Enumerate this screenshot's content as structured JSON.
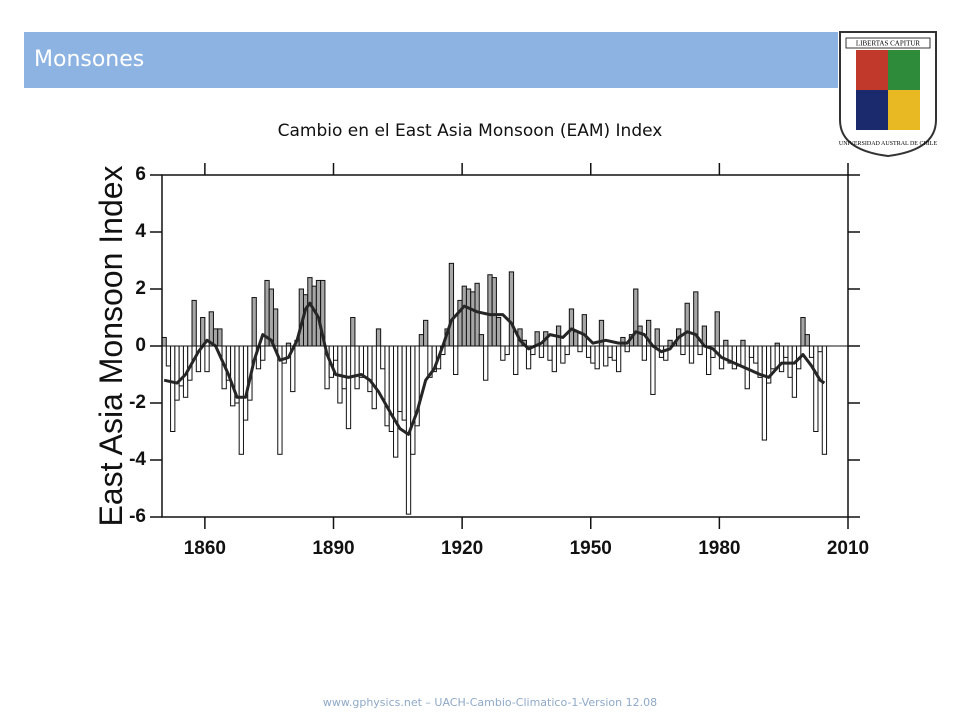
{
  "header": {
    "title": "Monsones"
  },
  "logo": {
    "motto": "LIBERTAS CAPITUR",
    "name": "UNIVERSIDAD AUSTRAL DE CHILE"
  },
  "footer": "www.gphysics.net – UACH-Cambio-Climatico-1-Version 12.08",
  "chart_data": {
    "type": "bar",
    "title": "Cambio en el East Asia Monsoon (EAM) Index",
    "ylabel": "East Asia Monsoon Index",
    "xlim": [
      1850,
      2010
    ],
    "xticks": [
      1860,
      1890,
      1920,
      1950,
      1980,
      2010
    ],
    "ylim": [
      -6,
      6
    ],
    "yticks": [
      -6,
      -4,
      -2,
      0,
      2,
      4,
      6
    ],
    "positive_color": "#a6a6a6",
    "negative_color": "#ffffff",
    "x": [
      1850,
      1851,
      1852,
      1853,
      1854,
      1855,
      1856,
      1857,
      1858,
      1859,
      1860,
      1861,
      1862,
      1863,
      1864,
      1865,
      1866,
      1867,
      1868,
      1869,
      1870,
      1871,
      1872,
      1873,
      1874,
      1875,
      1876,
      1877,
      1878,
      1879,
      1880,
      1881,
      1882,
      1883,
      1884,
      1885,
      1886,
      1887,
      1888,
      1889,
      1890,
      1891,
      1892,
      1893,
      1894,
      1895,
      1896,
      1897,
      1898,
      1899,
      1900,
      1901,
      1902,
      1903,
      1904,
      1905,
      1906,
      1907,
      1908,
      1909,
      1910,
      1911,
      1912,
      1913,
      1914,
      1915,
      1916,
      1917,
      1918,
      1919,
      1920,
      1921,
      1922,
      1923,
      1924,
      1925,
      1926,
      1927,
      1928,
      1929,
      1930,
      1931,
      1932,
      1933,
      1934,
      1935,
      1936,
      1937,
      1938,
      1939,
      1940,
      1941,
      1942,
      1943,
      1944,
      1945,
      1946,
      1947,
      1948,
      1949,
      1950,
      1951,
      1952,
      1953,
      1954,
      1955,
      1956,
      1957,
      1958,
      1959,
      1960,
      1961,
      1962,
      1963,
      1964,
      1965,
      1966,
      1967,
      1968,
      1969,
      1970,
      1971,
      1972,
      1973,
      1974,
      1975,
      1976,
      1977,
      1978,
      1979,
      1980,
      1981,
      1982,
      1983,
      1984,
      1985,
      1986,
      1987,
      1988,
      1989,
      1990,
      1991,
      1992,
      1993,
      1994,
      1995,
      1996,
      1997,
      1998,
      1999,
      2000,
      2001,
      2002,
      2003,
      2004
    ],
    "values": [
      0.3,
      -0.7,
      -3.0,
      -1.9,
      -1.4,
      -1.8,
      -1.2,
      1.6,
      -0.9,
      1.0,
      -0.9,
      1.2,
      0.6,
      0.6,
      -1.5,
      -1.2,
      -2.1,
      -2.0,
      -3.8,
      -2.6,
      -1.9,
      1.7,
      -0.8,
      -0.5,
      2.3,
      2.0,
      1.3,
      -3.8,
      -0.6,
      0.1,
      -1.6,
      0.2,
      2.0,
      1.8,
      2.4,
      2.1,
      2.3,
      2.3,
      -1.5,
      -1.1,
      -0.5,
      -2.0,
      -1.5,
      -2.9,
      1.0,
      -1.5,
      -1.1,
      -1.1,
      -1.6,
      -2.2,
      0.6,
      -0.8,
      -2.8,
      -3.0,
      -3.9,
      -2.3,
      -2.6,
      -5.9,
      -3.8,
      -2.8,
      0.4,
      0.9,
      -1.1,
      -0.9,
      -0.8,
      -0.3,
      0.6,
      2.9,
      -1.0,
      1.6,
      2.1,
      2.0,
      1.9,
      2.2,
      0.4,
      -1.2,
      2.5,
      2.4,
      1.0,
      -0.5,
      -0.3,
      2.6,
      -1.0,
      0.6,
      0.2,
      -0.8,
      -0.3,
      0.5,
      -0.4,
      0.5,
      -0.5,
      -0.9,
      0.7,
      -0.6,
      -0.3,
      1.3,
      0.5,
      -0.2,
      1.1,
      -0.4,
      -0.6,
      -0.8,
      0.9,
      -0.7,
      -0.4,
      -0.5,
      -0.9,
      0.3,
      -0.2,
      0.4,
      2.0,
      0.7,
      -0.5,
      0.9,
      -1.7,
      0.6,
      -0.4,
      -0.5,
      0.2,
      0.1,
      0.6,
      -0.3,
      1.5,
      -0.6,
      1.9,
      -0.3,
      0.7,
      -1.0,
      -0.4,
      1.2,
      -0.8,
      0.2,
      -0.6,
      -0.8,
      -0.7,
      0.2,
      -1.5,
      -0.4,
      -0.6,
      -1.1,
      -3.3,
      -1.3,
      -0.8,
      0.1,
      -0.9,
      -0.4,
      -1.1,
      -1.8,
      -0.8,
      1.0,
      0.4,
      -0.4,
      -3.0,
      -0.2,
      -3.8
    ],
    "smooth": {
      "color": "#262626",
      "x": [
        1850,
        1853,
        1855,
        1858,
        1860,
        1862,
        1865,
        1867,
        1869,
        1871,
        1873,
        1875,
        1877,
        1879,
        1881,
        1883,
        1884,
        1886,
        1888,
        1890,
        1893,
        1896,
        1898,
        1900,
        1903,
        1905,
        1907,
        1909,
        1911,
        1913,
        1915,
        1917,
        1920,
        1923,
        1926,
        1929,
        1931,
        1933,
        1935,
        1938,
        1940,
        1943,
        1945,
        1948,
        1950,
        1953,
        1956,
        1958,
        1960,
        1962,
        1964,
        1966,
        1968,
        1970,
        1972,
        1974,
        1976,
        1978,
        1980,
        1983,
        1986,
        1989,
        1991,
        1994,
        1997,
        1999,
        2001,
        2003,
        2004
      ],
      "values": [
        -1.2,
        -1.3,
        -1.0,
        -0.2,
        0.2,
        0.0,
        -1.0,
        -1.8,
        -1.8,
        -0.5,
        0.4,
        0.2,
        -0.5,
        -0.4,
        0.2,
        1.3,
        1.5,
        1.0,
        -0.3,
        -1.0,
        -1.1,
        -1.0,
        -1.2,
        -1.6,
        -2.4,
        -2.9,
        -3.1,
        -2.3,
        -1.2,
        -0.8,
        0.0,
        0.9,
        1.4,
        1.2,
        1.1,
        1.1,
        0.8,
        0.2,
        -0.1,
        0.1,
        0.4,
        0.3,
        0.6,
        0.4,
        0.1,
        0.2,
        0.1,
        0.1,
        0.5,
        0.4,
        0.0,
        -0.2,
        -0.1,
        0.3,
        0.5,
        0.4,
        0.0,
        -0.1,
        -0.4,
        -0.6,
        -0.8,
        -1.0,
        -1.1,
        -0.6,
        -0.6,
        -0.3,
        -0.7,
        -1.2,
        -1.3
      ]
    }
  }
}
